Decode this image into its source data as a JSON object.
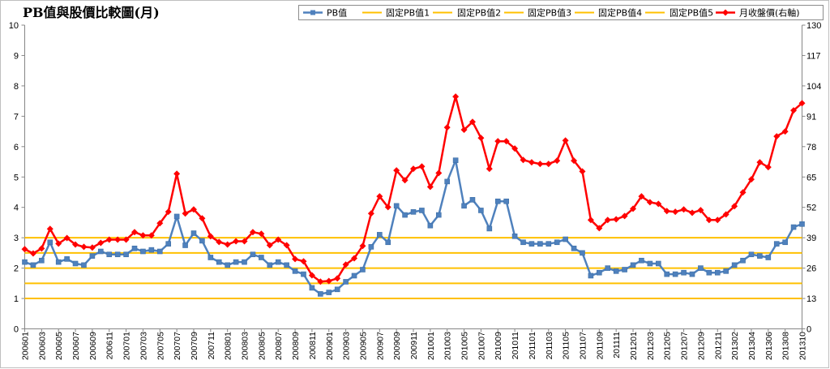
{
  "chart_data": {
    "type": "line",
    "title": "PB值與股價比較圖(月)",
    "legend_position": "top-right",
    "grid": false,
    "categories": [
      "200601",
      "",
      "200603",
      "",
      "200605",
      "",
      "200607",
      "",
      "200609",
      "",
      "200611",
      "",
      "200701",
      "",
      "200703",
      "",
      "200705",
      "",
      "200707",
      "",
      "200709",
      "",
      "200711",
      "",
      "200801",
      "",
      "200803",
      "",
      "200805",
      "",
      "200807",
      "",
      "200809",
      "",
      "200811",
      "",
      "200901",
      "",
      "200903",
      "",
      "200905",
      "",
      "200907",
      "",
      "200909",
      "",
      "200911",
      "",
      "201001",
      "",
      "201003",
      "",
      "201005",
      "",
      "201007",
      "",
      "201009",
      "",
      "201011",
      "",
      "201101",
      "",
      "201103",
      "",
      "201105",
      "",
      "201107",
      "",
      "201109",
      "",
      "201111",
      "",
      "201201",
      "",
      "201203",
      "",
      "201205",
      "",
      "201207",
      "",
      "201209",
      "",
      "201211",
      "",
      "201302",
      "",
      "201304",
      "",
      "201306",
      "",
      "201308",
      "",
      "201310"
    ],
    "y_left": {
      "min": 0,
      "max": 10,
      "ticks": [
        0,
        1,
        2,
        3,
        4,
        5,
        6,
        7,
        8,
        9,
        10
      ]
    },
    "y_right": {
      "min": 0,
      "max": 130,
      "ticks": [
        0,
        13,
        26,
        39,
        52,
        65,
        78,
        91,
        104,
        117,
        130
      ]
    },
    "series": [
      {
        "name": "PB值",
        "axis": "left",
        "color": "#4F81BD",
        "marker": "square",
        "values": [
          2.2,
          2.1,
          2.25,
          2.85,
          2.2,
          2.3,
          2.15,
          2.1,
          2.4,
          2.55,
          2.45,
          2.45,
          2.45,
          2.65,
          2.55,
          2.6,
          2.55,
          2.8,
          3.7,
          2.75,
          3.15,
          2.9,
          2.35,
          2.2,
          2.1,
          2.2,
          2.2,
          2.45,
          2.35,
          2.1,
          2.2,
          2.1,
          1.9,
          1.8,
          1.35,
          1.15,
          1.2,
          1.3,
          1.55,
          1.75,
          1.95,
          2.7,
          3.1,
          2.85,
          4.05,
          3.75,
          3.85,
          3.9,
          3.4,
          3.75,
          4.85,
          5.55,
          4.05,
          4.25,
          3.9,
          3.3,
          4.2,
          4.2,
          3.05,
          2.85,
          2.8,
          2.8,
          2.8,
          2.85,
          2.95,
          2.65,
          2.5,
          1.75,
          1.85,
          2.0,
          1.9,
          1.95,
          2.1,
          2.25,
          2.15,
          2.15,
          1.8,
          1.8,
          1.85,
          1.8,
          2.0,
          1.85,
          1.85,
          1.9,
          2.1,
          2.25,
          2.45,
          2.4,
          2.35,
          2.8,
          2.85,
          3.35,
          3.45
        ]
      },
      {
        "name": "固定PB值1",
        "axis": "left",
        "color": "#FFC000",
        "value": 1.0
      },
      {
        "name": "固定PB值2",
        "axis": "left",
        "color": "#FFC000",
        "value": 1.5
      },
      {
        "name": "固定PB值3",
        "axis": "left",
        "color": "#FFC000",
        "value": 2.0
      },
      {
        "name": "固定PB值4",
        "axis": "left",
        "color": "#FFC000",
        "value": 2.5
      },
      {
        "name": "固定PB值5",
        "axis": "left",
        "color": "#FFC000",
        "value": 3.0
      },
      {
        "name": "月收盤價(右軸)",
        "axis": "right",
        "color": "#FF0000",
        "marker": "diamond",
        "values": [
          34.1,
          32.3,
          34.4,
          42.8,
          36.5,
          38.9,
          36.1,
          35.1,
          34.8,
          36.8,
          38.2,
          38.2,
          38.2,
          41.4,
          40.0,
          40.0,
          45.2,
          50.1,
          66.4,
          49.4,
          51.1,
          47.3,
          39.6,
          37.2,
          36.1,
          37.5,
          37.5,
          41.4,
          40.7,
          35.8,
          38.2,
          35.8,
          29.9,
          28.9,
          22.9,
          20.2,
          20.5,
          21.6,
          27.5,
          30.2,
          35.5,
          49.4,
          56.7,
          52.1,
          67.8,
          63.6,
          68.5,
          69.5,
          60.8,
          66.7,
          86.2,
          99.4,
          85.2,
          88.6,
          81.7,
          68.5,
          80.3,
          80.3,
          77.2,
          72.3,
          71.3,
          70.6,
          70.6,
          72.0,
          80.6,
          72.0,
          67.4,
          46.6,
          43.1,
          46.6,
          46.9,
          48.3,
          51.4,
          56.7,
          54.2,
          53.5,
          50.4,
          50.1,
          51.1,
          49.7,
          50.8,
          46.6,
          46.6,
          49.0,
          52.5,
          58.4,
          64.0,
          71.3,
          69.2,
          82.4,
          84.5,
          93.5,
          96.6
        ]
      }
    ]
  }
}
